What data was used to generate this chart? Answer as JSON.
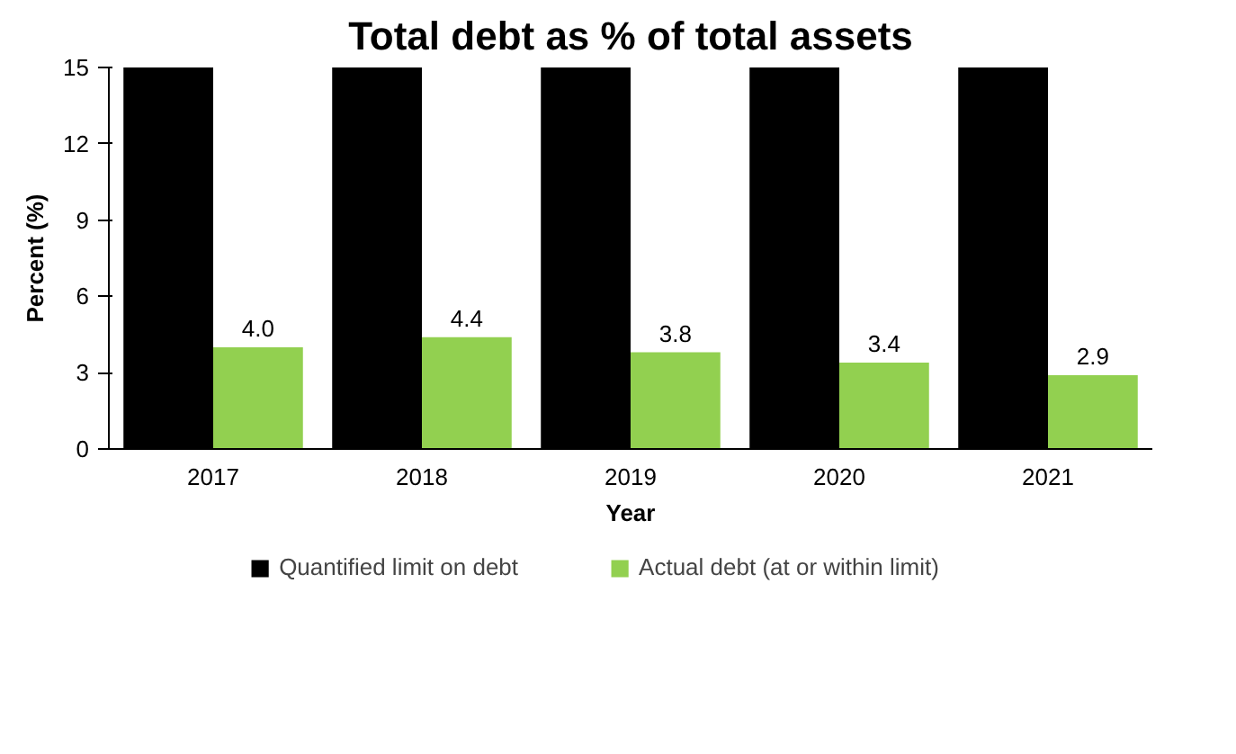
{
  "chart_data": {
    "type": "bar",
    "title": "Total debt as % of total assets",
    "xlabel": "Year",
    "ylabel": "Percent (%)",
    "categories": [
      "2017",
      "2018",
      "2019",
      "2020",
      "2021"
    ],
    "series": [
      {
        "name": "Quantified limit on debt",
        "color": "#000000",
        "values": [
          15,
          15,
          15,
          15,
          15
        ],
        "value_labels": [
          null,
          null,
          null,
          null,
          null
        ]
      },
      {
        "name": "Actual debt (at or within limit)",
        "color": "#92d050",
        "values": [
          4.0,
          4.4,
          3.8,
          3.4,
          2.9
        ],
        "value_labels": [
          "4.0",
          "4.4",
          "3.8",
          "3.4",
          "2.9"
        ]
      }
    ],
    "ylim": [
      0,
      15
    ],
    "yticks": [
      0,
      3,
      6,
      9,
      12,
      15
    ],
    "grid": false,
    "legend": "bottom"
  }
}
